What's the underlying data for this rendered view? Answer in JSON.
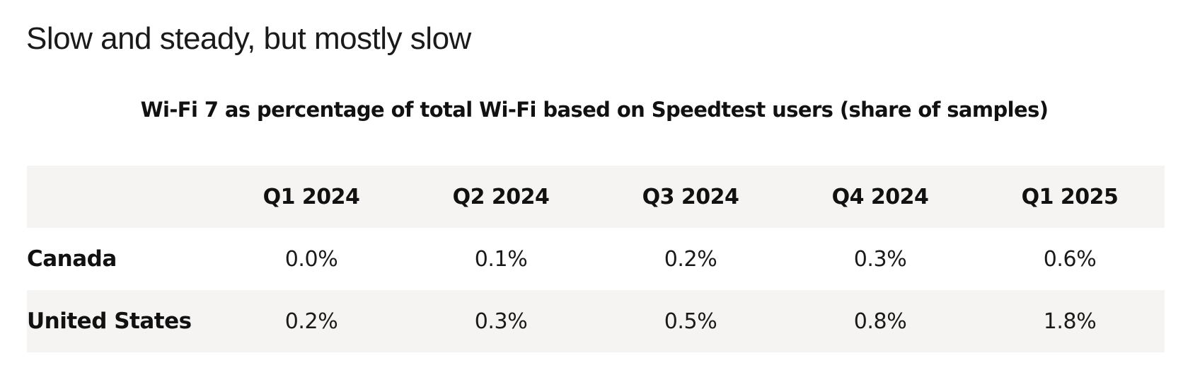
{
  "headline": "Slow and steady, but mostly slow",
  "chart_data": {
    "type": "table",
    "title": "Wi-Fi 7 as percentage of total Wi-Fi based on Speedtest users (share of samples)",
    "columns": [
      "Q1 2024",
      "Q2 2024",
      "Q3 2024",
      "Q4 2024",
      "Q1 2025"
    ],
    "rows": [
      {
        "label": "Canada",
        "values": [
          "0.0%",
          "0.1%",
          "0.2%",
          "0.3%",
          "0.6%"
        ]
      },
      {
        "label": "United States",
        "values": [
          "0.2%",
          "0.3%",
          "0.5%",
          "0.8%",
          "1.8%"
        ]
      }
    ],
    "row_shading": "alternating light gray"
  }
}
